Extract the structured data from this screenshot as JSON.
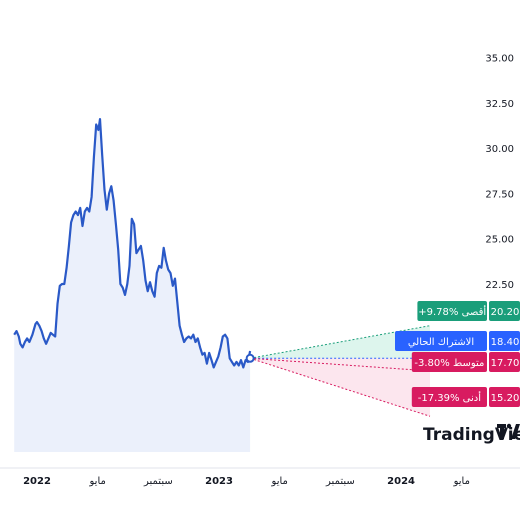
{
  "brand": {
    "name": "TradingView",
    "icon": "tradingview-logo-icon"
  },
  "colors": {
    "line": "#2a59c7",
    "area": "#e9eefb",
    "high": "#1a9e7a",
    "current": "#2962ff",
    "average": "#d81b60",
    "low": "#d81b60",
    "high_fill": "#d4f2e8",
    "low_fill": "#fbe0ea"
  },
  "chart_data": {
    "type": "area",
    "y_axis": {
      "ticks": [
        "35.00",
        "32.50",
        "30.00",
        "27.50",
        "25.00",
        "22.50"
      ],
      "ylim": [
        14.5,
        36.0
      ],
      "position": "right"
    },
    "x_axis": {
      "ticks": [
        {
          "label": "2022",
          "bold": true,
          "t": 0.0
        },
        {
          "label": "مايو",
          "bold": false,
          "t": 4.0
        },
        {
          "label": "سبتمبر",
          "bold": false,
          "t": 8.0
        },
        {
          "label": "2023",
          "bold": true,
          "t": 12.0
        },
        {
          "label": "مايو",
          "bold": false,
          "t": 16.0
        },
        {
          "label": "سبتمبر",
          "bold": false,
          "t": 20.0
        },
        {
          "label": "2024",
          "bold": true,
          "t": 24.0
        },
        {
          "label": "مايو",
          "bold": false,
          "t": 28.0
        }
      ]
    },
    "series": [
      {
        "points": [
          [
            -1.5,
            19.7
          ],
          [
            -1.35,
            19.9
          ],
          [
            -1.2,
            19.6
          ],
          [
            -1.1,
            19.2
          ],
          [
            -0.95,
            19.0
          ],
          [
            -0.8,
            19.3
          ],
          [
            -0.65,
            19.5
          ],
          [
            -0.5,
            19.3
          ],
          [
            -0.3,
            19.7
          ],
          [
            -0.1,
            20.3
          ],
          [
            0.0,
            20.4
          ],
          [
            0.15,
            20.2
          ],
          [
            0.3,
            19.9
          ],
          [
            0.45,
            19.5
          ],
          [
            0.6,
            19.2
          ],
          [
            0.75,
            19.5
          ],
          [
            0.9,
            19.8
          ],
          [
            1.05,
            19.7
          ],
          [
            1.2,
            19.6
          ],
          [
            1.35,
            21.4
          ],
          [
            1.5,
            22.4
          ],
          [
            1.65,
            22.5
          ],
          [
            1.8,
            22.5
          ],
          [
            1.95,
            23.4
          ],
          [
            2.1,
            24.6
          ],
          [
            2.25,
            25.9
          ],
          [
            2.4,
            26.3
          ],
          [
            2.55,
            26.5
          ],
          [
            2.7,
            26.3
          ],
          [
            2.85,
            26.7
          ],
          [
            3.0,
            25.7
          ],
          [
            3.15,
            26.5
          ],
          [
            3.3,
            26.7
          ],
          [
            3.45,
            26.5
          ],
          [
            3.6,
            27.3
          ],
          [
            3.75,
            29.5
          ],
          [
            3.9,
            31.3
          ],
          [
            4.05,
            31.0
          ],
          [
            4.15,
            31.6
          ],
          [
            4.3,
            29.6
          ],
          [
            4.45,
            27.7
          ],
          [
            4.6,
            26.6
          ],
          [
            4.75,
            27.5
          ],
          [
            4.9,
            27.9
          ],
          [
            5.05,
            27.1
          ],
          [
            5.2,
            25.8
          ],
          [
            5.35,
            24.4
          ],
          [
            5.5,
            22.5
          ],
          [
            5.65,
            22.3
          ],
          [
            5.8,
            21.9
          ],
          [
            5.95,
            22.5
          ],
          [
            6.1,
            23.5
          ],
          [
            6.25,
            26.1
          ],
          [
            6.4,
            25.8
          ],
          [
            6.55,
            24.2
          ],
          [
            6.7,
            24.4
          ],
          [
            6.85,
            24.6
          ],
          [
            7.0,
            23.8
          ],
          [
            7.15,
            22.7
          ],
          [
            7.3,
            22.1
          ],
          [
            7.45,
            22.6
          ],
          [
            7.6,
            22.1
          ],
          [
            7.75,
            21.8
          ],
          [
            7.9,
            23.1
          ],
          [
            8.05,
            23.5
          ],
          [
            8.2,
            23.4
          ],
          [
            8.35,
            24.5
          ],
          [
            8.5,
            23.8
          ],
          [
            8.65,
            23.3
          ],
          [
            8.8,
            23.1
          ],
          [
            8.95,
            22.4
          ],
          [
            9.1,
            22.8
          ],
          [
            9.25,
            21.5
          ],
          [
            9.4,
            20.2
          ],
          [
            9.55,
            19.7
          ],
          [
            9.7,
            19.3
          ],
          [
            9.85,
            19.5
          ],
          [
            10.0,
            19.6
          ],
          [
            10.15,
            19.5
          ],
          [
            10.3,
            19.7
          ],
          [
            10.45,
            19.3
          ],
          [
            10.6,
            19.5
          ],
          [
            10.75,
            19.0
          ],
          [
            10.9,
            18.6
          ],
          [
            11.05,
            18.7
          ],
          [
            11.2,
            18.1
          ],
          [
            11.35,
            18.7
          ],
          [
            11.5,
            18.3
          ],
          [
            11.65,
            17.9
          ],
          [
            11.8,
            18.2
          ],
          [
            11.95,
            18.5
          ],
          [
            12.1,
            19.0
          ],
          [
            12.25,
            19.6
          ],
          [
            12.4,
            19.7
          ],
          [
            12.55,
            19.5
          ],
          [
            12.7,
            18.4
          ],
          [
            12.85,
            18.2
          ],
          [
            13.0,
            18.0
          ],
          [
            13.15,
            18.2
          ],
          [
            13.3,
            18.0
          ],
          [
            13.45,
            18.3
          ],
          [
            13.6,
            17.9
          ],
          [
            13.75,
            18.3
          ],
          [
            13.9,
            18.2
          ],
          [
            14.05,
            18.8
          ]
        ]
      }
    ],
    "current_value": 18.4,
    "forecast": {
      "start_t": 14.05,
      "end_t": 17.5,
      "targets": [
        {
          "kind": "high",
          "label": "أقصى",
          "pct": "+9.78%",
          "value": "20.20"
        },
        {
          "kind": "current",
          "label": "الاشتراك الحالي",
          "pct": "",
          "value": "18.40"
        },
        {
          "kind": "average",
          "label": "متوسط",
          "pct": "-3.80%",
          "value": "17.70"
        },
        {
          "kind": "low",
          "label": "أدنى",
          "pct": "-17.39%",
          "value": "15.20"
        }
      ]
    }
  }
}
